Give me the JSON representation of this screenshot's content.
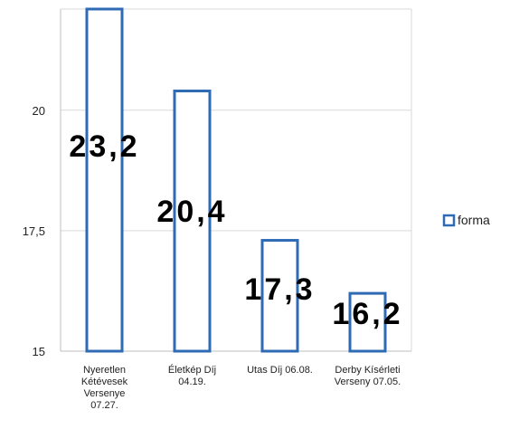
{
  "chart_data": {
    "type": "bar",
    "categories": [
      "Nyeretlen Kétévesek Versenye 07.27.",
      "Életkép Díj 04.19.",
      "Utas Díj 06.08.",
      "Derby Kísérleti Verseny 07.05."
    ],
    "category_lines": [
      [
        "Nyeretlen",
        "Kétévesek",
        "Versenye",
        "07.27."
      ],
      [
        "Életkép Díj",
        "04.19."
      ],
      [
        "Utas Díj 06.08."
      ],
      [
        "Derby Kísérleti",
        "Verseny 07.05."
      ]
    ],
    "series": [
      {
        "name": "forma",
        "values": [
          23.2,
          20.4,
          17.3,
          16.2
        ]
      }
    ],
    "data_labels": [
      "23,2",
      "20,4",
      "17,3",
      "16,2"
    ],
    "y_ticks": [
      15,
      17.5,
      20
    ],
    "y_tick_labels": [
      "15",
      "17,5",
      "20"
    ],
    "ylim": [
      15,
      22.1
    ],
    "title": "",
    "xlabel": "",
    "ylabel": "",
    "grid": true,
    "legend_position": "right",
    "colors": {
      "bar_stroke": "#2E6BB4",
      "bar_fill": "#FFFFFF",
      "grid": "#D9D9D9",
      "axis": "#BFBFBF"
    }
  }
}
